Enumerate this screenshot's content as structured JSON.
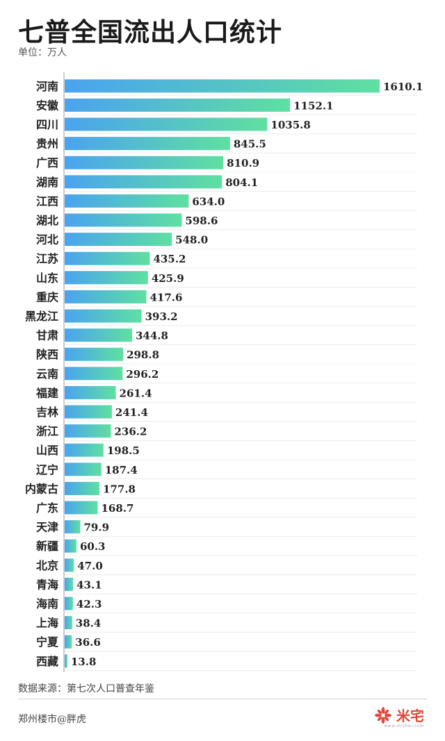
{
  "header": {
    "title": "七普全国流出人口统计",
    "unit": "单位：万人"
  },
  "chart_data": {
    "type": "bar",
    "orientation": "horizontal",
    "categories": [
      "河南",
      "安徽",
      "四川",
      "贵州",
      "广西",
      "湖南",
      "江西",
      "湖北",
      "河北",
      "江苏",
      "山东",
      "重庆",
      "黑龙江",
      "甘肃",
      "陕西",
      "云南",
      "福建",
      "吉林",
      "浙江",
      "山西",
      "辽宁",
      "内蒙古",
      "广东",
      "天津",
      "新疆",
      "北京",
      "青海",
      "海南",
      "上海",
      "宁夏",
      "西藏"
    ],
    "values": [
      1610.1,
      1152.1,
      1035.8,
      845.5,
      810.9,
      804.1,
      634.0,
      598.6,
      548.0,
      435.2,
      425.9,
      417.6,
      393.2,
      344.8,
      298.8,
      296.2,
      261.4,
      241.4,
      236.2,
      198.5,
      187.4,
      177.8,
      168.7,
      79.9,
      60.3,
      47.0,
      43.1,
      42.3,
      38.4,
      36.6,
      13.8
    ],
    "value_labels": [
      "1610.1",
      "1152.1",
      "1035.8",
      "845.5",
      "810.9",
      "804.1",
      "634.0",
      "598.6",
      "548.0",
      "435.2",
      "425.9",
      "417.6",
      "393.2",
      "344.8",
      "298.8",
      "296.2",
      "261.4",
      "241.4",
      "236.2",
      "198.5",
      "187.4",
      "177.8",
      "168.7",
      "79.9",
      "60.3",
      "47.0",
      "43.1",
      "42.3",
      "38.4",
      "36.6",
      "13.8"
    ],
    "xlim": [
      0,
      1610.1
    ],
    "gradient": [
      "#4aa3f0",
      "#5fe0a0"
    ]
  },
  "footer": {
    "source": "数据来源：第七次人口普查年鉴",
    "author": "郑州楼市@胖虎",
    "brand": "米宅",
    "brand_sub": "www.mizhai.com"
  },
  "colors": {
    "brand": "#e0483a",
    "text": "#222222"
  }
}
